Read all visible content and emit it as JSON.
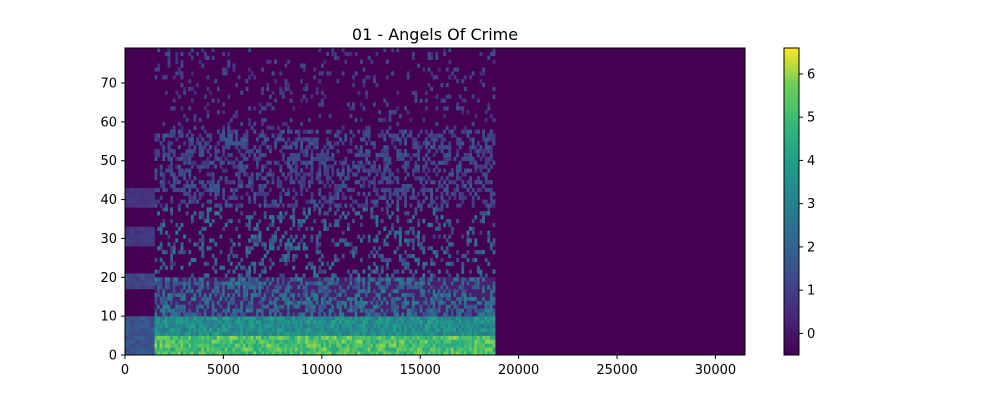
{
  "chart_data": {
    "type": "heatmap",
    "title": "01 - Angels Of Crime",
    "xlabel": "",
    "ylabel": "",
    "xlim": [
      0,
      31500
    ],
    "ylim": [
      0,
      79
    ],
    "x_ticks": [
      0,
      5000,
      10000,
      15000,
      20000,
      25000,
      30000
    ],
    "y_ticks": [
      0,
      10,
      20,
      30,
      40,
      50,
      60,
      70
    ],
    "colorbar": {
      "range": [
        -0.5,
        6.6
      ],
      "ticks": [
        0,
        1,
        2,
        3,
        4,
        5,
        6
      ],
      "colormap": "viridis"
    },
    "content_regions": [
      {
        "description": "low-energy intro segment",
        "x_range": [
          0,
          1500
        ],
        "y_range": [
          0,
          47
        ],
        "intensity": "low"
      },
      {
        "description": "main song body",
        "x_range": [
          1500,
          18800
        ],
        "y_range": [
          0,
          79
        ],
        "intensity": "high in low bands"
      },
      {
        "description": "silence after song end",
        "x_range": [
          18800,
          31500
        ],
        "y_range": [
          0,
          79
        ],
        "intensity": "zero"
      }
    ],
    "background_value": -0.5,
    "colors": {
      "background": "#440154",
      "low": "#3b528b",
      "mid": "#21918c",
      "high": "#5ec962",
      "peak": "#fde725"
    }
  }
}
